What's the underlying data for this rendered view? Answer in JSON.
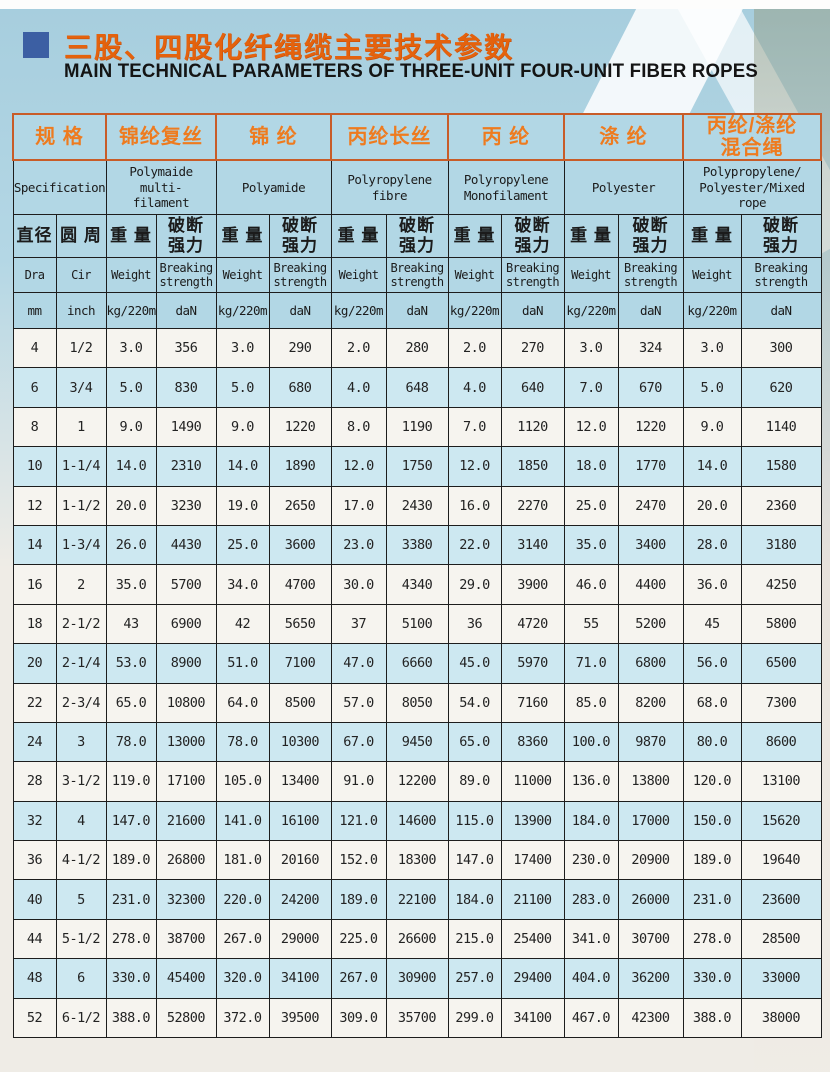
{
  "header": {
    "title_cn": "三股、四股化纤绳缆主要技术参数",
    "subtitle_en": "MAIN TECHNICAL PARAMETERS OF THREE-UNIT FOUR-UNIT FIBER ROPES"
  },
  "colors": {
    "title_orange": "#e4620d",
    "group_text_orange": "#ee7b1f",
    "group_border_orange": "#c85c28",
    "header_bg_blue": "#b2d7e5",
    "row_shaded_blue": "#cde8f1",
    "row_white": "#f6f4ef",
    "grid_black": "#1d1d1d",
    "bullet_blue": "#3c5fa3",
    "page_top_blue": "#aed3e2"
  },
  "table": {
    "groups": [
      {
        "cn": "规 格",
        "en": "Specification"
      },
      {
        "cn": "锦纶复丝",
        "en": "Polymaide multi-\nfilament"
      },
      {
        "cn": "锦 纶",
        "en": "Polyamide"
      },
      {
        "cn": "丙纶长丝",
        "en": "Polyropylene\nfibre"
      },
      {
        "cn": "丙 纶",
        "en": "Polyropylene\nMonofilament"
      },
      {
        "cn": "涤 纶",
        "en": "Polyester"
      },
      {
        "cn": "丙纶/涤纶\n混合绳",
        "en": "Polypropylene/\nPolyester/Mixed\nrope"
      }
    ],
    "sub": {
      "diameter": {
        "cn": "直径",
        "en": "Dra",
        "unit": "mm"
      },
      "circumference": {
        "cn": "圆 周",
        "en": "Cir",
        "unit": "inch"
      },
      "weight": {
        "cn": "重 量",
        "en": "Weight",
        "unit": "kg/220m"
      },
      "breaking": {
        "cn": "破断\n强力",
        "en": "Breaking\nstrength",
        "unit": "daN"
      }
    },
    "rows": [
      [
        "4",
        "1/2",
        "3.0",
        "356",
        "3.0",
        "290",
        "2.0",
        "280",
        "2.0",
        "270",
        "3.0",
        "324",
        "3.0",
        "300"
      ],
      [
        "6",
        "3/4",
        "5.0",
        "830",
        "5.0",
        "680",
        "4.0",
        "648",
        "4.0",
        "640",
        "7.0",
        "670",
        "5.0",
        "620"
      ],
      [
        "8",
        "1",
        "9.0",
        "1490",
        "9.0",
        "1220",
        "8.0",
        "1190",
        "7.0",
        "1120",
        "12.0",
        "1220",
        "9.0",
        "1140"
      ],
      [
        "10",
        "1-1/4",
        "14.0",
        "2310",
        "14.0",
        "1890",
        "12.0",
        "1750",
        "12.0",
        "1850",
        "18.0",
        "1770",
        "14.0",
        "1580"
      ],
      [
        "12",
        "1-1/2",
        "20.0",
        "3230",
        "19.0",
        "2650",
        "17.0",
        "2430",
        "16.0",
        "2270",
        "25.0",
        "2470",
        "20.0",
        "2360"
      ],
      [
        "14",
        "1-3/4",
        "26.0",
        "4430",
        "25.0",
        "3600",
        "23.0",
        "3380",
        "22.0",
        "3140",
        "35.0",
        "3400",
        "28.0",
        "3180"
      ],
      [
        "16",
        "2",
        "35.0",
        "5700",
        "34.0",
        "4700",
        "30.0",
        "4340",
        "29.0",
        "3900",
        "46.0",
        "4400",
        "36.0",
        "4250"
      ],
      [
        "18",
        "2-1/2",
        "43",
        "6900",
        "42",
        "5650",
        "37",
        "5100",
        "36",
        "4720",
        "55",
        "5200",
        "45",
        "5800"
      ],
      [
        "20",
        "2-1/4",
        "53.0",
        "8900",
        "51.0",
        "7100",
        "47.0",
        "6660",
        "45.0",
        "5970",
        "71.0",
        "6800",
        "56.0",
        "6500"
      ],
      [
        "22",
        "2-3/4",
        "65.0",
        "10800",
        "64.0",
        "8500",
        "57.0",
        "8050",
        "54.0",
        "7160",
        "85.0",
        "8200",
        "68.0",
        "7300"
      ],
      [
        "24",
        "3",
        "78.0",
        "13000",
        "78.0",
        "10300",
        "67.0",
        "9450",
        "65.0",
        "8360",
        "100.0",
        "9870",
        "80.0",
        "8600"
      ],
      [
        "28",
        "3-1/2",
        "119.0",
        "17100",
        "105.0",
        "13400",
        "91.0",
        "12200",
        "89.0",
        "11000",
        "136.0",
        "13800",
        "120.0",
        "13100"
      ],
      [
        "32",
        "4",
        "147.0",
        "21600",
        "141.0",
        "16100",
        "121.0",
        "14600",
        "115.0",
        "13900",
        "184.0",
        "17000",
        "150.0",
        "15620"
      ],
      [
        "36",
        "4-1/2",
        "189.0",
        "26800",
        "181.0",
        "20160",
        "152.0",
        "18300",
        "147.0",
        "17400",
        "230.0",
        "20900",
        "189.0",
        "19640"
      ],
      [
        "40",
        "5",
        "231.0",
        "32300",
        "220.0",
        "24200",
        "189.0",
        "22100",
        "184.0",
        "21100",
        "283.0",
        "26000",
        "231.0",
        "23600"
      ],
      [
        "44",
        "5-1/2",
        "278.0",
        "38700",
        "267.0",
        "29000",
        "225.0",
        "26600",
        "215.0",
        "25400",
        "341.0",
        "30700",
        "278.0",
        "28500"
      ],
      [
        "48",
        "6",
        "330.0",
        "45400",
        "320.0",
        "34100",
        "267.0",
        "30900",
        "257.0",
        "29400",
        "404.0",
        "36200",
        "330.0",
        "33000"
      ],
      [
        "52",
        "6-1/2",
        "388.0",
        "52800",
        "372.0",
        "39500",
        "309.0",
        "35700",
        "299.0",
        "34100",
        "467.0",
        "42300",
        "388.0",
        "38000"
      ]
    ],
    "shaded_rows": [
      1,
      3,
      5,
      8,
      10,
      12,
      14,
      16
    ]
  }
}
